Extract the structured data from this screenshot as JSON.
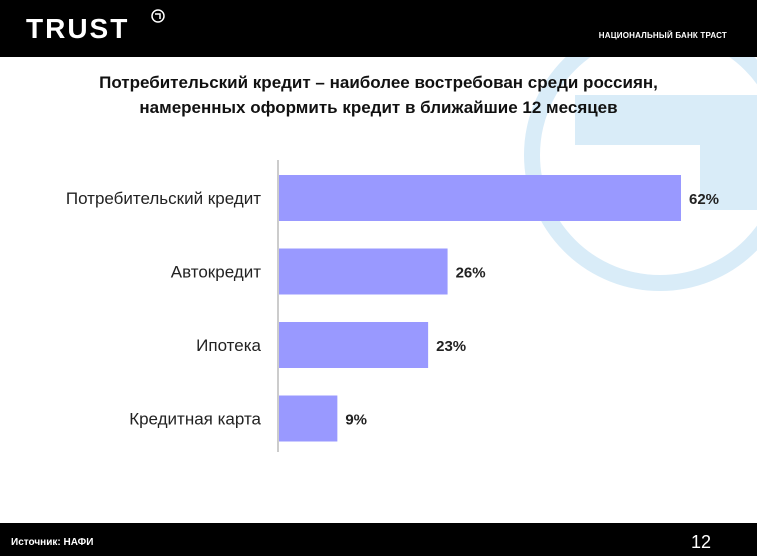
{
  "header": {
    "logo_text": "TRUST",
    "bank_name": "НАЦИОНАЛЬНЫЙ БАНК ТРАСТ"
  },
  "slide": {
    "title_line1": "Потребительский кредит – наиболее востребован среди россиян,",
    "title_line2": "намеренных оформить кредит в ближайшие 12 месяцев"
  },
  "chart_data": {
    "type": "bar",
    "orientation": "horizontal",
    "categories": [
      "Потребительский кредит",
      "Автокредит",
      "Ипотека",
      "Кредитная карта"
    ],
    "values": [
      62,
      26,
      23,
      9
    ],
    "value_labels": [
      "62%",
      "26%",
      "23%",
      "9%"
    ],
    "unit": "%",
    "xlim": [
      0,
      62
    ],
    "grid": false,
    "bar_color": "#9999FF"
  },
  "footer": {
    "source": "Источник: НАФИ",
    "page_number": "12"
  },
  "colors": {
    "header_bg": "#000000",
    "watermark": "#d9ecf8",
    "bar": "#9999FF"
  }
}
